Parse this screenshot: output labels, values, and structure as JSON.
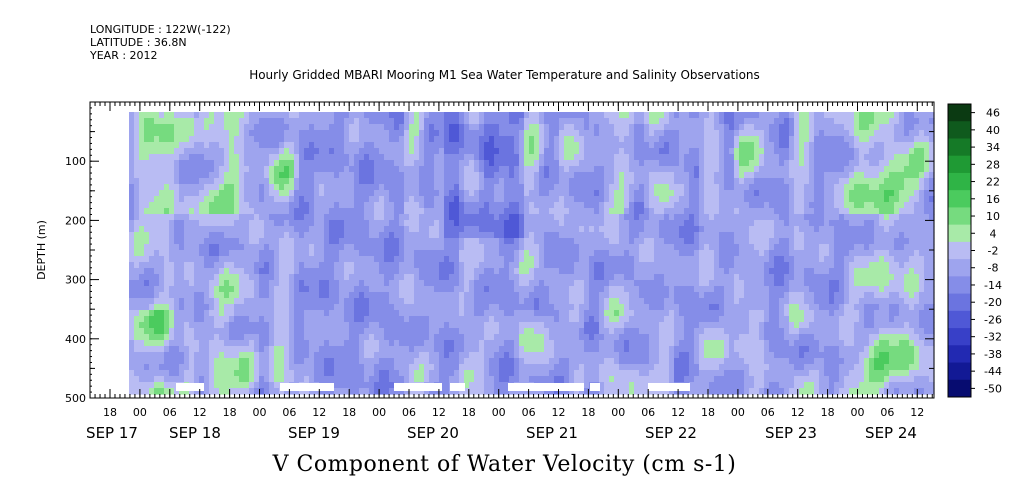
{
  "header": {
    "longitude": "LONGITUDE : 122W(-122)",
    "latitude": "LATITUDE : 36.8N",
    "year": "YEAR : 2012"
  },
  "chart_data": {
    "type": "heatmap",
    "title": "Hourly Gridded MBARI Mooring M1 Sea Water Temperature and Salinity Observations",
    "bottom_title": "V Component of Water Velocity (cm s-1)",
    "ylabel": "DEPTH (m)",
    "xlabel": "",
    "ylim": [
      500,
      0
    ],
    "y_ticks": [
      100,
      200,
      300,
      400,
      500
    ],
    "hour_ticks": [
      "18",
      "00",
      "06",
      "12",
      "18",
      "00",
      "06",
      "12",
      "18",
      "00",
      "06",
      "12",
      "18",
      "00",
      "06",
      "12",
      "18",
      "00",
      "06",
      "12",
      "18",
      "00",
      "06",
      "12",
      "18",
      "00",
      "06",
      "12",
      "18",
      "00",
      "06",
      "12",
      "18",
      "00",
      "06",
      "12"
    ],
    "date_labels": [
      "SEP 17",
      "SEP 18",
      "SEP 19",
      "SEP 20",
      "SEP 21",
      "SEP 22",
      "SEP 23",
      "SEP 24"
    ],
    "colorbar": {
      "labels": [
        "46",
        "40",
        "34",
        "28",
        "22",
        "16",
        "10",
        "4",
        "-2",
        "-8",
        "-14",
        "-20",
        "-26",
        "-32",
        "-38",
        "-44",
        "-50"
      ],
      "colors": [
        "#0b3a12",
        "#0f5a1d",
        "#157a27",
        "#1f9a34",
        "#2fb446",
        "#4bcb5e",
        "#76db7f",
        "#a8eaa8",
        "#b9bcf3",
        "#9ea4ee",
        "#858de8",
        "#6b74e0",
        "#4f58d6",
        "#3840c8",
        "#2229b2",
        "#121995",
        "#070c70"
      ],
      "grid": true
    },
    "data_description": "V velocity field, mostly -5 to -20 cm/s with green (positive) bands",
    "series": [
      {
        "x_hours_from_sep17_0": [
          20,
          28,
          40,
          48,
          58,
          72,
          90,
          108,
          120,
          132,
          150,
          160,
          168,
          184,
          200,
          210,
          230,
          240,
          252,
          260,
          270,
          276
        ],
        "values_near_surface": [
          8,
          10,
          12,
          4,
          -6,
          -10,
          -12,
          -14,
          -10,
          -8,
          -6,
          -12,
          -16,
          -8,
          -4,
          4,
          -6,
          -12,
          -14,
          2,
          14,
          20
        ]
      }
    ]
  }
}
